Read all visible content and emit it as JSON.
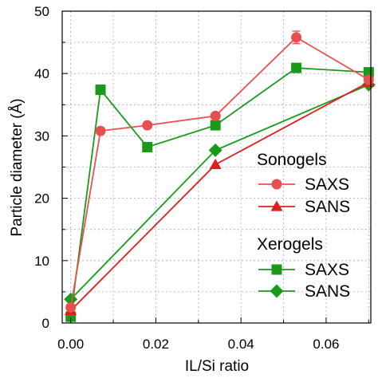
{
  "chart_data": {
    "type": "line",
    "title": "",
    "xlabel": "IL/Si ratio",
    "ylabel": "Particle diameter (Å)",
    "xlim": [
      -0.002,
      0.0705
    ],
    "ylim": [
      0,
      50
    ],
    "x_ticks": [
      0.0,
      0.02,
      0.04,
      0.06
    ],
    "x_tick_labels": [
      "0.00",
      "0.02",
      "0.04",
      "0.06"
    ],
    "y_ticks": [
      0,
      10,
      20,
      30,
      40,
      50
    ],
    "y_tick_labels": [
      "0",
      "10",
      "20",
      "30",
      "40",
      "50"
    ],
    "grid": true,
    "legend_placement": "right",
    "legend_groups": [
      {
        "title": "Sonogels",
        "entries": [
          "SAXS",
          "SANS"
        ]
      },
      {
        "title": "Xerogels",
        "entries": [
          "SAXS",
          "SANS"
        ]
      }
    ],
    "series": [
      {
        "group": "Sonogels",
        "name": "SAXS",
        "color": "#e8504f",
        "marker": "circle",
        "x": [
          0.0,
          0.007,
          0.018,
          0.034,
          0.053,
          0.07
        ],
        "y": [
          2.5,
          30.8,
          31.7,
          33.2,
          45.8,
          39.0
        ],
        "error": [
          null,
          null,
          null,
          null,
          1.0,
          null
        ]
      },
      {
        "group": "Sonogels",
        "name": "SANS",
        "color": "#e01e1e",
        "marker": "triangle",
        "x": [
          0.0,
          0.034,
          0.07
        ],
        "y": [
          2.0,
          25.4,
          38.6
        ]
      },
      {
        "group": "Xerogels",
        "name": "SAXS",
        "color": "#1a9a1a",
        "marker": "square",
        "x": [
          0.0,
          0.007,
          0.018,
          0.034,
          0.053,
          0.07
        ],
        "y": [
          1.0,
          37.4,
          28.2,
          31.7,
          40.9,
          40.2
        ]
      },
      {
        "group": "Xerogels",
        "name": "SANS",
        "color": "#1a9a1a",
        "marker": "diamond",
        "x": [
          0.0,
          0.034,
          0.07
        ],
        "y": [
          3.8,
          27.7,
          38.2
        ]
      }
    ]
  }
}
